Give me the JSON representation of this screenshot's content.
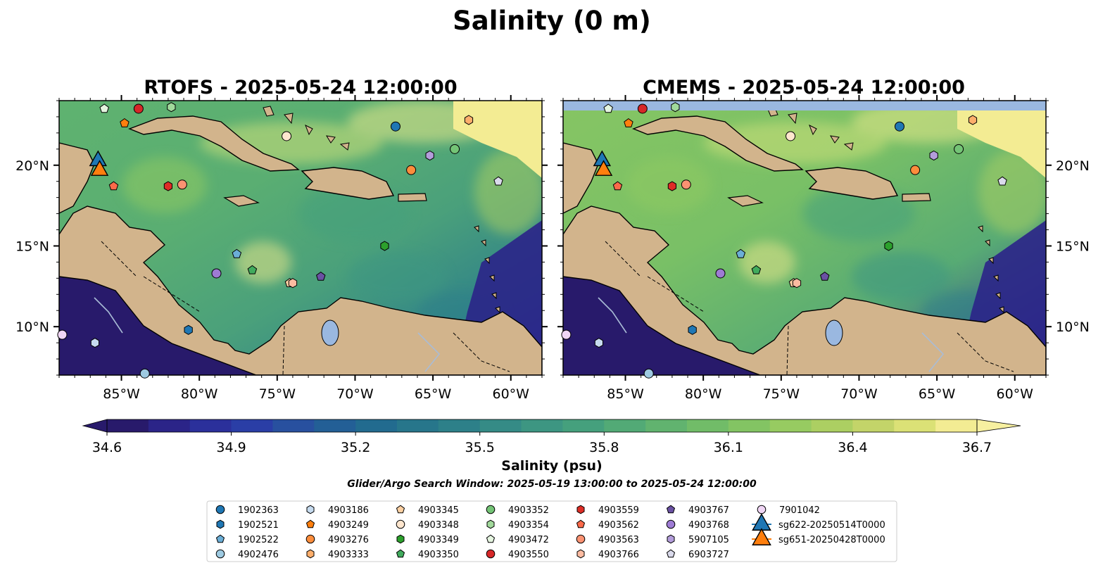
{
  "title": "Salinity (0 m)",
  "panels": [
    {
      "title": "RTOFS - 2025-05-24 12:00:00"
    },
    {
      "title": "CMEMS - 2025-05-24 12:00:00"
    }
  ],
  "search_window": "Glider/Argo Search Window: 2025-05-19 13:00:00 to 2025-05-24 12:00:00",
  "colorbar": {
    "label": "Salinity (psu)",
    "ticks": [
      "34.6",
      "34.9",
      "35.2",
      "35.5",
      "35.8",
      "36.1",
      "36.4",
      "36.7"
    ],
    "colors": [
      "#281a6b",
      "#2b2488",
      "#2b309b",
      "#2a3ea6",
      "#28509f",
      "#235f96",
      "#226b8f",
      "#27768b",
      "#2d8089",
      "#358b86",
      "#3d9682",
      "#45a07d",
      "#52aa76",
      "#61b36f",
      "#71bc68",
      "#83c463",
      "#97cb61",
      "#accf62",
      "#c3d469",
      "#dbe176",
      "#f3ec93"
    ],
    "under": "#281a6b",
    "over": "#f7f0a0"
  },
  "land_color": "#d2b48c",
  "chart_data": {
    "type": "map",
    "variable": "Salinity (psu)",
    "depth": "0 m",
    "lon_range": [
      -89,
      -58
    ],
    "lat_range": [
      7,
      24
    ],
    "lon_ticks": [
      "85°W",
      "80°W",
      "75°W",
      "70°W",
      "65°W",
      "60°W"
    ],
    "lat_ticks": [
      "10°N",
      "15°N",
      "20°N"
    ],
    "color_range": [
      34.6,
      36.7
    ],
    "floats": [
      {
        "id": "1902363",
        "marker": "circle",
        "color": "#1f77b4",
        "lon": -67.4,
        "lat": 22.4
      },
      {
        "id": "1902521",
        "marker": "hexagon",
        "color": "#1f77b4",
        "lon": -80.7,
        "lat": 9.8
      },
      {
        "id": "1902522",
        "marker": "pentagon",
        "color": "#6baed6",
        "lon": -77.6,
        "lat": 14.5
      },
      {
        "id": "4902476",
        "marker": "circle",
        "color": "#9ecae1",
        "lon": -83.5,
        "lat": 7.1
      },
      {
        "id": "4903186",
        "marker": "hexagon",
        "color": "#c6dbef",
        "lon": -86.7,
        "lat": 9.0
      },
      {
        "id": "4903249",
        "marker": "pentagon",
        "color": "#ff7f0e",
        "lon": -84.8,
        "lat": 22.6
      },
      {
        "id": "4903276",
        "marker": "circle",
        "color": "#fd8d3c",
        "lon": -66.4,
        "lat": 19.7
      },
      {
        "id": "4903333",
        "marker": "hexagon",
        "color": "#fdae6b",
        "lon": -62.7,
        "lat": 22.8
      },
      {
        "id": "4903345",
        "marker": "pentagon",
        "color": "#fdd0a2",
        "lon": -74.2,
        "lat": 12.7
      },
      {
        "id": "4903348",
        "marker": "circle",
        "color": "#fee6ce",
        "lon": -74.4,
        "lat": 21.8
      },
      {
        "id": "4903349",
        "marker": "hexagon",
        "color": "#2ca02c",
        "lon": -68.1,
        "lat": 15.0
      },
      {
        "id": "4903350",
        "marker": "pentagon",
        "color": "#41ab5d",
        "lon": -76.6,
        "lat": 13.5
      },
      {
        "id": "4903352",
        "marker": "circle",
        "color": "#74c476",
        "lon": -63.6,
        "lat": 21.0
      },
      {
        "id": "4903354",
        "marker": "hexagon",
        "color": "#a1d99b",
        "lon": -81.8,
        "lat": 23.6
      },
      {
        "id": "4903472",
        "marker": "pentagon",
        "color": "#e5f5e0",
        "lon": -86.1,
        "lat": 23.5
      },
      {
        "id": "4903550",
        "marker": "circle",
        "color": "#d62728",
        "lon": -83.9,
        "lat": 23.5
      },
      {
        "id": "4903559",
        "marker": "hexagon",
        "color": "#de2d26",
        "lon": -82.0,
        "lat": 18.7
      },
      {
        "id": "4903562",
        "marker": "pentagon",
        "color": "#fb6a4a",
        "lon": -85.5,
        "lat": 18.7
      },
      {
        "id": "4903563",
        "marker": "circle",
        "color": "#fc9272",
        "lon": -81.1,
        "lat": 18.8
      },
      {
        "id": "4903766",
        "marker": "hexagon",
        "color": "#fcbba1",
        "lon": -74.0,
        "lat": 12.7
      },
      {
        "id": "4903767",
        "marker": "pentagon",
        "color": "#6a51a3",
        "lon": -72.2,
        "lat": 13.1
      },
      {
        "id": "4903768",
        "marker": "circle",
        "color": "#9e7bd4",
        "lon": -78.9,
        "lat": 13.3
      },
      {
        "id": "5907105",
        "marker": "hexagon",
        "color": "#b39ddb",
        "lon": -65.2,
        "lat": 20.6
      },
      {
        "id": "6903727",
        "marker": "pentagon",
        "color": "#dadaeb",
        "lon": -60.8,
        "lat": 19.0
      },
      {
        "id": "7901042",
        "marker": "circle",
        "color": "#f0d6f5",
        "lon": -88.8,
        "lat": 9.5
      },
      {
        "id": "sg622-20250514T0000",
        "marker": "triangle",
        "color": "#1f77b4",
        "lon": -86.5,
        "lat": 20.3
      },
      {
        "id": "sg651-20250428T0000",
        "marker": "triangle",
        "color": "#ff7f0e",
        "lon": -86.4,
        "lat": 19.7
      }
    ]
  }
}
